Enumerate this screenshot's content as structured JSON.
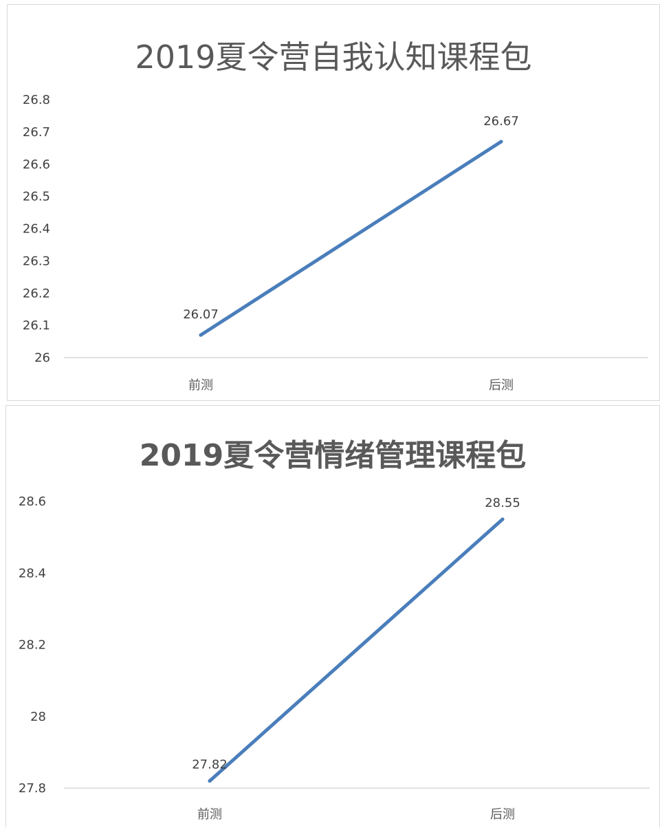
{
  "charts": [
    {
      "type": "line",
      "title": "2019夏令营自我认知课程包",
      "categories": [
        "前测",
        "后测"
      ],
      "series": [
        {
          "values": [
            26.07,
            26.67
          ]
        }
      ],
      "yticks": [
        "26",
        "26.1",
        "26.2",
        "26.3",
        "26.4",
        "26.5",
        "26.6",
        "26.7",
        "26.8"
      ],
      "ylim": [
        26,
        26.8
      ],
      "data_labels": [
        "26.07",
        "26.67"
      ],
      "grid": false,
      "line_color": "#4a7ebb"
    },
    {
      "type": "line",
      "title": "2019夏令营情绪管理课程包",
      "categories": [
        "前测",
        "后测"
      ],
      "series": [
        {
          "values": [
            27.82,
            28.55
          ]
        }
      ],
      "yticks": [
        "27.8",
        "28",
        "28.2",
        "28.4",
        "28.6"
      ],
      "ylim": [
        27.8,
        28.6
      ],
      "data_labels": [
        "27.82",
        "28.55"
      ],
      "grid": false,
      "line_color": "#4a7ebb"
    }
  ],
  "chart_data": [
    {
      "type": "line",
      "title": "2019夏令营自我认知课程包",
      "categories": [
        "前测",
        "后测"
      ],
      "values": [
        26.07,
        26.67
      ],
      "ylim": [
        26,
        26.8
      ]
    },
    {
      "type": "line",
      "title": "2019夏令营情绪管理课程包",
      "categories": [
        "前测",
        "后测"
      ],
      "values": [
        27.82,
        28.55
      ],
      "ylim": [
        27.8,
        28.6
      ]
    }
  ]
}
